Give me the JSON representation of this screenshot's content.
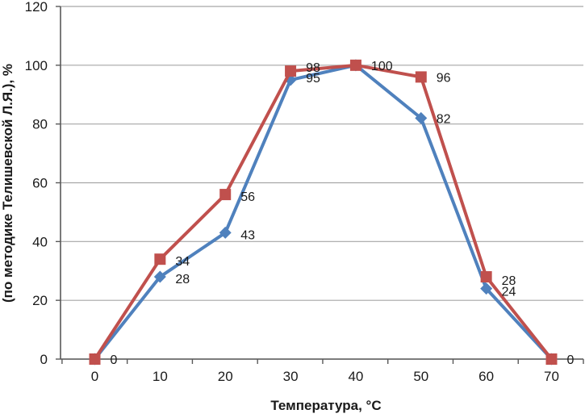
{
  "chart_data": {
    "type": "line",
    "title": "",
    "xlabel": "Температура, °С",
    "ylabel": "(по методике Телишевской Л.Я.), %",
    "x": [
      0,
      10,
      20,
      30,
      40,
      50,
      60,
      70
    ],
    "x_tick_labels": [
      "0",
      "10",
      "20",
      "30",
      "40",
      "50",
      "60",
      "70"
    ],
    "ylim": [
      0,
      120
    ],
    "ytick_step": 20,
    "y_tick_labels": [
      "0",
      "20",
      "40",
      "60",
      "80",
      "100",
      "120"
    ],
    "grid": true,
    "legend_position": "none",
    "data_labels_shown": true,
    "series": [
      {
        "name": "blue-series",
        "color": "#4F81BD",
        "marker": "diamond",
        "values": [
          0,
          28,
          43,
          95,
          100,
          82,
          24,
          0
        ],
        "point_labels": [
          "0",
          "28",
          "43",
          "95",
          "100",
          "82",
          "24",
          "0"
        ]
      },
      {
        "name": "red-series",
        "color": "#C0504D",
        "marker": "square",
        "values": [
          0,
          34,
          56,
          98,
          100,
          96,
          28,
          0
        ],
        "point_labels": [
          "0",
          "34",
          "56",
          "98",
          "100",
          "96",
          "28",
          "0"
        ]
      }
    ],
    "colors": {
      "grid": "#A6A6A6",
      "axis": "#595959",
      "text": "#1A1A1A",
      "background": "#FFFFFF"
    }
  }
}
